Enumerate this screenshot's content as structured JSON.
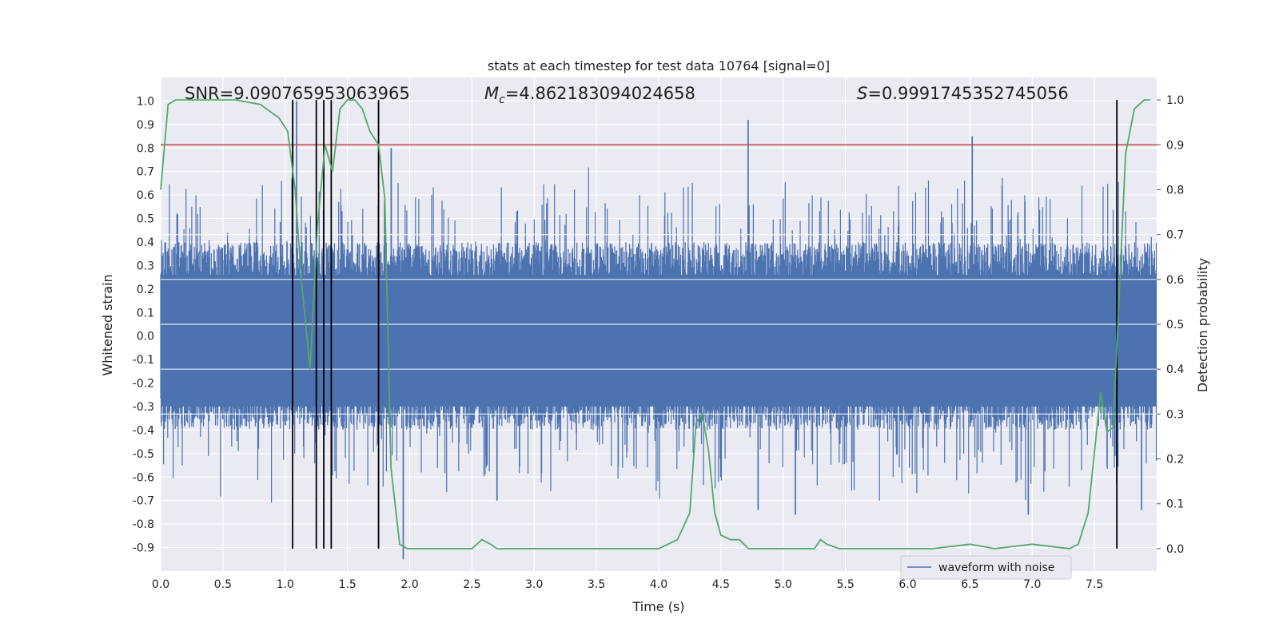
{
  "chart_data": {
    "type": "line",
    "title": "stats at each timestep for test data 10764 [signal=0]",
    "xlabel": "Time (s)",
    "ylabel_left": "Whitened strain",
    "ylabel_right": "Detection probability",
    "xlim": [
      0.0,
      8.0
    ],
    "ylim_left": [
      -1.0,
      1.1
    ],
    "ylim_right": [
      -0.05,
      1.05
    ],
    "x_ticks": [
      "0.0",
      "0.5",
      "1.0",
      "1.5",
      "2.0",
      "2.5",
      "3.0",
      "3.5",
      "4.0",
      "4.5",
      "5.0",
      "5.5",
      "6.0",
      "6.5",
      "7.0",
      "7.5"
    ],
    "y_left_ticks": [
      "1.0",
      "0.9",
      "0.8",
      "0.7",
      "0.6",
      "0.5",
      "0.4",
      "0.3",
      "0.2",
      "0.1",
      "0.0",
      "-0.1",
      "-0.2",
      "-0.3",
      "-0.4",
      "-0.5",
      "-0.6",
      "-0.7",
      "-0.8",
      "-0.9"
    ],
    "y_right_ticks": [
      "1.0",
      "0.9",
      "0.8",
      "0.7",
      "0.6",
      "0.5",
      "0.4",
      "0.3",
      "0.2",
      "0.1",
      "0.0"
    ],
    "grid": true,
    "legend": {
      "placement": "lower-right",
      "entries": [
        "waveform with noise"
      ]
    },
    "annotations": {
      "snr": "SNR=9.090765953063965",
      "mc_symbol": "M",
      "mc_sub": "c",
      "mc_value": "=4.862183094024658",
      "s_symbol": "S",
      "s_value": "=0.9991745352745056"
    },
    "colors": {
      "waveform": "#4c72b0",
      "probability": "#55a868",
      "threshold": "#c44e52",
      "markers": "#000000",
      "background": "#eaeaf2",
      "grid": "#ffffff"
    },
    "threshold_probability": 0.9,
    "vertical_markers_s": [
      1.06,
      1.25,
      1.31,
      1.37,
      1.75,
      7.68
    ],
    "series": [
      {
        "name": "waveform with noise",
        "axis": "left",
        "envelope_seed": 10764,
        "typical_amplitude": 0.4,
        "spikes": [
          {
            "x": 1.06,
            "y": 1.0
          },
          {
            "x": 1.09,
            "y": 1.0
          },
          {
            "x": 1.85,
            "y": 0.8
          },
          {
            "x": 1.95,
            "y": -0.95
          },
          {
            "x": 4.72,
            "y": 0.92
          },
          {
            "x": 6.52,
            "y": 0.85
          },
          {
            "x": 7.68,
            "y": -0.63
          },
          {
            "x": 4.8,
            "y": -0.74
          },
          {
            "x": 5.1,
            "y": -0.76
          },
          {
            "x": 6.97,
            "y": -0.76
          },
          {
            "x": 7.88,
            "y": -0.74
          },
          {
            "x": 2.7,
            "y": -0.7
          }
        ]
      },
      {
        "name": "detection probability",
        "axis": "right",
        "x": [
          0.0,
          0.06,
          0.12,
          0.2,
          0.4,
          0.6,
          0.8,
          0.85,
          0.95,
          1.02,
          1.08,
          1.13,
          1.2,
          1.26,
          1.32,
          1.38,
          1.44,
          1.5,
          1.56,
          1.62,
          1.68,
          1.75,
          1.8,
          1.85,
          1.92,
          1.98,
          2.1,
          2.3,
          2.5,
          2.58,
          2.65,
          2.7,
          3.0,
          3.4,
          4.0,
          4.15,
          4.25,
          4.3,
          4.35,
          4.4,
          4.45,
          4.5,
          4.58,
          4.65,
          4.72,
          4.8,
          4.9,
          5.1,
          5.25,
          5.3,
          5.35,
          5.45,
          5.8,
          6.2,
          6.5,
          6.7,
          7.0,
          7.3,
          7.37,
          7.45,
          7.55,
          7.6,
          7.65,
          7.75,
          7.82,
          7.9,
          7.95
        ],
        "values": [
          0.8,
          0.99,
          1.0,
          1.0,
          1.0,
          1.0,
          0.99,
          0.98,
          0.96,
          0.93,
          0.8,
          0.6,
          0.4,
          0.72,
          0.9,
          0.84,
          0.98,
          1.0,
          1.0,
          0.98,
          0.93,
          0.9,
          0.78,
          0.18,
          0.01,
          0.0,
          0.0,
          0.0,
          0.0,
          0.02,
          0.01,
          0.0,
          0.0,
          0.0,
          0.0,
          0.02,
          0.08,
          0.28,
          0.3,
          0.22,
          0.08,
          0.03,
          0.02,
          0.02,
          0.0,
          0.0,
          0.0,
          0.0,
          0.0,
          0.02,
          0.01,
          0.0,
          0.0,
          0.0,
          0.01,
          0.0,
          0.01,
          0.0,
          0.01,
          0.08,
          0.35,
          0.26,
          0.27,
          0.88,
          0.98,
          1.0,
          1.0
        ]
      }
    ]
  }
}
